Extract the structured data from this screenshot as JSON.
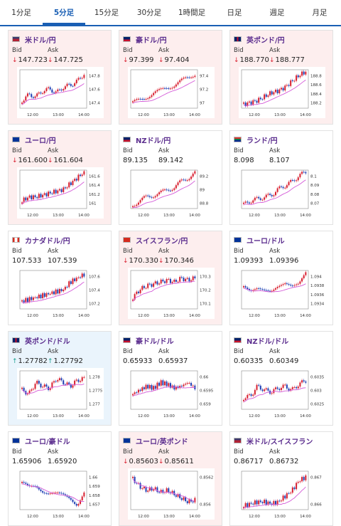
{
  "tabs": [
    {
      "label": "1分足",
      "active": false
    },
    {
      "label": "5分足",
      "active": true
    },
    {
      "label": "15分足",
      "active": false
    },
    {
      "label": "30分足",
      "active": false
    },
    {
      "label": "1時間足",
      "active": false
    },
    {
      "label": "日足",
      "active": false
    },
    {
      "label": "週足",
      "active": false
    },
    {
      "label": "月足",
      "active": false
    }
  ],
  "labels": {
    "bid": "Bid",
    "ask": "Ask"
  },
  "colors": {
    "accent": "#1a5fb4",
    "pair": "#5b2d8e",
    "down": "#d81e2e",
    "up": "#1a9f8f",
    "candle_up": "#d81e2e",
    "candle_down": "#1e3fb4",
    "ma": "#d45ad8"
  },
  "cards": [
    {
      "pair": "米ドル/円",
      "flag": "us-flag-icon",
      "trend": "down",
      "bid": "147.723",
      "ask": "147.725",
      "ticks": [
        "147.8",
        "147.6",
        "147.4"
      ],
      "times": [
        "12:00",
        "13:00",
        "14:00"
      ]
    },
    {
      "pair": "豪ドル/円",
      "flag": "au-flag-icon",
      "trend": "down",
      "bid": "97.399",
      "ask": "97.404",
      "ticks": [
        "97.4",
        "97.2",
        "97"
      ],
      "times": [
        "12:00",
        "13:00",
        "14:00"
      ]
    },
    {
      "pair": "英ポンド/円",
      "flag": "gb-flag-icon",
      "trend": "down",
      "bid": "188.770",
      "ask": "188.777",
      "ticks": [
        "188.8",
        "188.6",
        "188.4",
        "188.2"
      ],
      "times": [
        "12:00",
        "13:00",
        "14:00"
      ]
    },
    {
      "pair": "ユーロ/円",
      "flag": "eu-flag-icon",
      "trend": "down",
      "bid": "161.600",
      "ask": "161.604",
      "ticks": [
        "161.6",
        "161.4",
        "161.2",
        "161"
      ],
      "times": [
        "12:00",
        "13:00",
        "14:00"
      ]
    },
    {
      "pair": "NZドル/円",
      "flag": "nz-flag-icon",
      "trend": "flat",
      "bid": "89.135",
      "ask": "89.142",
      "ticks": [
        "89.2",
        "89",
        "88.8"
      ],
      "times": [
        "12:00",
        "13:00",
        "14:00"
      ]
    },
    {
      "pair": "ランド/円",
      "flag": "za-flag-icon",
      "trend": "flat",
      "bid": "8.098",
      "ask": "8.107",
      "ticks": [
        "8.1",
        "8.09",
        "8.08",
        "8.07"
      ],
      "times": [
        "12:00",
        "13:00",
        "14:00"
      ]
    },
    {
      "pair": "カナダドル/円",
      "flag": "ca-flag-icon",
      "trend": "flat",
      "bid": "107.533",
      "ask": "107.539",
      "ticks": [
        "107.6",
        "107.4",
        "107.2"
      ],
      "times": [
        "12:00",
        "13:00",
        "14:00"
      ]
    },
    {
      "pair": "スイスフラン/円",
      "flag": "ch-flag-icon",
      "trend": "down",
      "bid": "170.330",
      "ask": "170.346",
      "ticks": [
        "170.3",
        "170.2",
        "170.1"
      ],
      "times": [
        "12:00",
        "13:00",
        "14:00"
      ]
    },
    {
      "pair": "ユーロ/ドル",
      "flag": "eu-flag-icon",
      "trend": "flat",
      "bid": "1.09393",
      "ask": "1.09396",
      "ticks": [
        "1.094",
        "1.0938",
        "1.0936",
        "1.0934"
      ],
      "times": [
        "12:00",
        "13:00",
        "14:00"
      ]
    },
    {
      "pair": "英ポンド/ドル",
      "flag": "gb-flag-icon",
      "trend": "up",
      "bid": "1.27782",
      "ask": "1.27792",
      "ticks": [
        "1.278",
        "1.2775",
        "1.277"
      ],
      "times": [
        "12:00",
        "13:00",
        "14:00"
      ]
    },
    {
      "pair": "豪ドル/ドル",
      "flag": "au-flag-icon",
      "trend": "flat",
      "bid": "0.65933",
      "ask": "0.65937",
      "ticks": [
        "0.66",
        "0.6595",
        "0.659"
      ],
      "times": [
        "12:00",
        "13:00",
        "14:00"
      ]
    },
    {
      "pair": "NZドル/ドル",
      "flag": "nz-flag-icon",
      "trend": "flat",
      "bid": "0.60335",
      "ask": "0.60349",
      "ticks": [
        "0.6035",
        "0.603",
        "0.6025"
      ],
      "times": [
        "12:00",
        "13:00",
        "14:00"
      ]
    },
    {
      "pair": "ユーロ/豪ドル",
      "flag": "eu-flag-icon",
      "trend": "flat",
      "bid": "1.65906",
      "ask": "1.65920",
      "ticks": [
        "1.66",
        "1.659",
        "1.658",
        "1.657"
      ],
      "times": [
        "12:00",
        "13:00",
        "14:00"
      ]
    },
    {
      "pair": "ユーロ/英ポンド",
      "flag": "eu-flag-icon",
      "trend": "down",
      "bid": "0.85603",
      "ask": "0.85611",
      "ticks": [
        "0.8562",
        "0.856"
      ],
      "times": [
        "12:00",
        "13:00",
        "14:00"
      ]
    },
    {
      "pair": "米ドル/スイスフラン",
      "flag": "us-flag-icon",
      "trend": "flat",
      "bid": "0.86717",
      "ask": "0.86732",
      "ticks": [
        "0.867",
        "0.866"
      ],
      "times": [
        "12:00",
        "13:00",
        "14:00"
      ]
    }
  ]
}
